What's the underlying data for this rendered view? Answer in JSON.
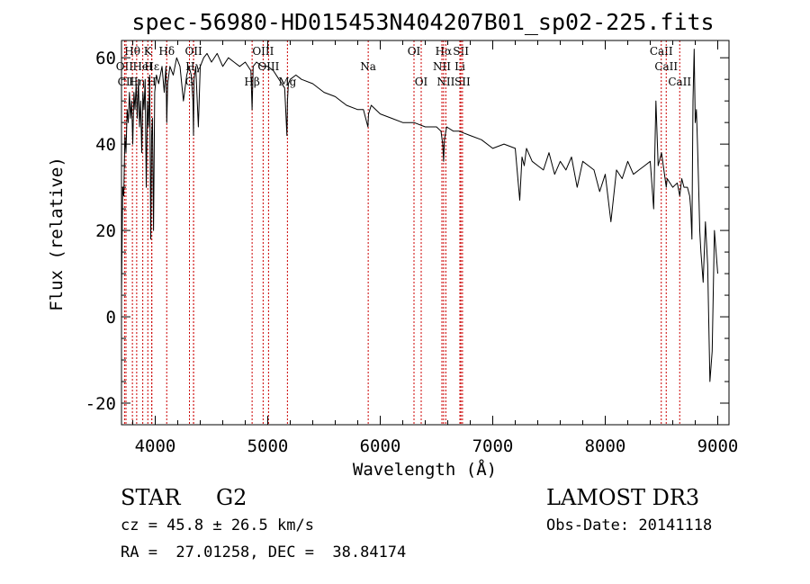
{
  "chart_data": {
    "type": "line",
    "title": "spec-56980-HD015453N404207B01_sp02-225.fits",
    "xlabel": "Wavelength (Å)",
    "ylabel": "Flux (relative)",
    "xlim": [
      3700,
      9100
    ],
    "ylim": [
      -25,
      64
    ],
    "xticks": [
      "4000",
      "5000",
      "6000",
      "7000",
      "8000",
      "9000"
    ],
    "yticks": [
      "-20",
      "0",
      "20",
      "40",
      "60"
    ],
    "line_color": "#000000",
    "marker_color": "#cc0000",
    "grid": false,
    "series": [
      {
        "x": [
          3700,
          3710,
          3720,
          3730,
          3740,
          3750,
          3760,
          3770,
          3780,
          3790,
          3800,
          3810,
          3820,
          3830,
          3840,
          3850,
          3860,
          3870,
          3880,
          3890,
          3900,
          3910,
          3920,
          3930,
          3940,
          3950,
          3960,
          3968,
          3975,
          3985,
          3995,
          4010,
          4030,
          4060,
          4080,
          4095,
          4102,
          4110,
          4130,
          4160,
          4190,
          4220,
          4250,
          4280,
          4300,
          4320,
          4335,
          4340,
          4345,
          4360,
          4383,
          4400,
          4430,
          4460,
          4500,
          4550,
          4600,
          4650,
          4700,
          4750,
          4800,
          4850,
          4861,
          4870,
          4900,
          4950,
          5000,
          5050,
          5100,
          5150,
          5170,
          5175,
          5183,
          5200,
          5250,
          5300,
          5400,
          5500,
          5600,
          5700,
          5800,
          5850,
          5890,
          5896,
          5920,
          6000,
          6100,
          6200,
          6300,
          6400,
          6500,
          6540,
          6555,
          6563,
          6570,
          6590,
          6650,
          6700,
          6800,
          6900,
          7000,
          7100,
          7200,
          7240,
          7260,
          7280,
          7300,
          7350,
          7400,
          7450,
          7500,
          7550,
          7600,
          7650,
          7700,
          7750,
          7800,
          7850,
          7900,
          7950,
          8000,
          8050,
          8100,
          8150,
          8200,
          8250,
          8300,
          8350,
          8400,
          8430,
          8450,
          8470,
          8500,
          8542,
          8550,
          8600,
          8640,
          8662,
          8680,
          8700,
          8730,
          8750,
          8760,
          8770,
          8775,
          8780,
          8790,
          8800,
          8810,
          8820,
          8830,
          8840,
          8850,
          8870,
          8890,
          8910,
          8930,
          8950,
          8970,
          9000
        ],
        "y": [
          5,
          30,
          28,
          42,
          38,
          48,
          45,
          52,
          46,
          50,
          40,
          52,
          48,
          54,
          46,
          55,
          44,
          50,
          38,
          52,
          48,
          55,
          30,
          50,
          44,
          56,
          18,
          42,
          46,
          20,
          52,
          56,
          54,
          58,
          52,
          58,
          45,
          54,
          58,
          56,
          60,
          58,
          50,
          56,
          58,
          56,
          50,
          42,
          55,
          58,
          44,
          58,
          60,
          61,
          59,
          61,
          58,
          60,
          59,
          58,
          59,
          57,
          48,
          58,
          59,
          58,
          58,
          57,
          55,
          53,
          42,
          50,
          54,
          55,
          56,
          55,
          54,
          52,
          51,
          49,
          48,
          48,
          44,
          47,
          49,
          47,
          46,
          45,
          45,
          44,
          44,
          43,
          40,
          36,
          41,
          44,
          43,
          43,
          42,
          41,
          39,
          40,
          39,
          27,
          37,
          35,
          39,
          36,
          35,
          34,
          38,
          33,
          36,
          34,
          37,
          30,
          36,
          35,
          34,
          29,
          33,
          22,
          34,
          32,
          36,
          33,
          34,
          35,
          36,
          25,
          50,
          35,
          38,
          30,
          32,
          30,
          31,
          28,
          32,
          30,
          30,
          28,
          25,
          18,
          35,
          50,
          62,
          45,
          48,
          40,
          30,
          20,
          15,
          8,
          22,
          12,
          -15,
          -8,
          20,
          10
        ]
      }
    ],
    "line_markers": [
      {
        "label": "Hθ",
        "x": 3797,
        "row": 1
      },
      {
        "label": "OII",
        "x": 3727,
        "row": 2
      },
      {
        "label": "CII",
        "x": 3740,
        "row": 3
      },
      {
        "label": "Hη",
        "x": 3835,
        "row": 3
      },
      {
        "label": "HeI",
        "x": 3889,
        "row": 2
      },
      {
        "label": "K",
        "x": 3934,
        "row": 1
      },
      {
        "label": "H",
        "x": 3968,
        "row": 3
      },
      {
        "label": "Hε",
        "x": 3970,
        "row": 2
      },
      {
        "label": "Hδ",
        "x": 4102,
        "row": 1
      },
      {
        "label": "OII",
        "x": 4341,
        "row": 1
      },
      {
        "label": "Hγ",
        "x": 4340,
        "row": 2
      },
      {
        "label": "G",
        "x": 4304,
        "row": 3
      },
      {
        "label": "Hβ",
        "x": 4861,
        "row": 3
      },
      {
        "label": "OIII",
        "x": 4959,
        "row": 1
      },
      {
        "label": "OIII",
        "x": 5007,
        "row": 2
      },
      {
        "label": "Mg",
        "x": 5175,
        "row": 3
      },
      {
        "label": "Na",
        "x": 5893,
        "row": 2
      },
      {
        "label": "OI",
        "x": 6300,
        "row": 1
      },
      {
        "label": "OI",
        "x": 6364,
        "row": 3
      },
      {
        "label": "Hα",
        "x": 6563,
        "row": 1
      },
      {
        "label": "NII",
        "x": 6548,
        "row": 2
      },
      {
        "label": "NII",
        "x": 6583,
        "row": 3
      },
      {
        "label": "SII",
        "x": 6717,
        "row": 1
      },
      {
        "label": "Li",
        "x": 6708,
        "row": 2
      },
      {
        "label": "SII",
        "x": 6731,
        "row": 3
      },
      {
        "label": "CaII",
        "x": 8498,
        "row": 1
      },
      {
        "label": "CaII",
        "x": 8542,
        "row": 2
      },
      {
        "label": "CaII",
        "x": 8662,
        "row": 3
      }
    ]
  },
  "info": {
    "object_class": "STAR",
    "subclass": "G2",
    "survey": "LAMOST DR3",
    "cz": "cz = 45.8 ± 26.5 km/s",
    "obs_date": "Obs-Date: 20141118",
    "coords": "RA =  27.01258, DEC =  38.84174"
  }
}
